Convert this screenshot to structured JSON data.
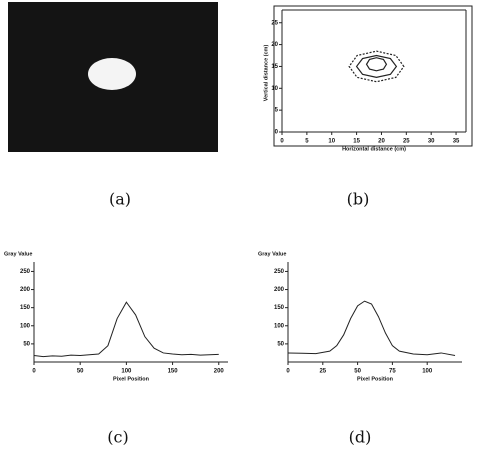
{
  "chart_data": [
    {
      "type": "image",
      "caption": "(a)"
    },
    {
      "type": "contour",
      "caption": "(b)",
      "xlabel": "Horizontal distance (cm)",
      "ylabel": "Vertical distance (cm)",
      "xlim": [
        0,
        37
      ],
      "xticks": [
        0,
        5,
        10,
        15,
        20,
        25,
        30,
        35
      ],
      "ylim": [
        0,
        27
      ],
      "yticks": [
        0,
        5,
        10,
        15,
        20,
        25
      ],
      "contours": [
        {
          "x": [
            24.5,
            22.9,
            19,
            15.1,
            13.5,
            15.1,
            19,
            22.9
          ],
          "y": [
            15,
            17.5,
            18.5,
            17.5,
            15,
            12.5,
            11.5,
            12.5
          ]
        },
        {
          "x": [
            23,
            21.8,
            19,
            16.2,
            15,
            16.2,
            19,
            21.8
          ],
          "y": [
            15,
            16.8,
            17.5,
            16.8,
            15,
            13.2,
            12.5,
            13.2
          ]
        },
        {
          "x": [
            21,
            20.4,
            19,
            17.6,
            17,
            17.6,
            19,
            20.4
          ],
          "y": [
            15.5,
            16.6,
            17,
            16.6,
            15.5,
            14.4,
            14,
            14.4
          ]
        }
      ],
      "color": "#222"
    },
    {
      "type": "line",
      "caption": "(c)",
      "ylabel": "Gray Value",
      "xlabel": "Pixel Position",
      "xlim": [
        0,
        210
      ],
      "xticks": [
        0,
        50,
        100,
        150,
        200
      ],
      "ylim": [
        0,
        265
      ],
      "yticks": [
        50,
        100,
        150,
        200,
        250
      ],
      "x": [
        0,
        10,
        20,
        30,
        40,
        50,
        60,
        70,
        80,
        90,
        100,
        110,
        120,
        130,
        140,
        150,
        160,
        170,
        180,
        190,
        200
      ],
      "values": [
        18,
        15,
        17,
        16,
        19,
        18,
        20,
        22,
        45,
        120,
        165,
        130,
        70,
        38,
        25,
        22,
        20,
        21,
        19,
        20,
        21
      ],
      "color": "#222"
    },
    {
      "type": "line",
      "caption": "(d)",
      "ylabel": "Gray Value",
      "xlabel": "Pixel Position",
      "xlim": [
        0,
        125
      ],
      "xticks": [
        0,
        25,
        50,
        75,
        100
      ],
      "ylim": [
        0,
        265
      ],
      "yticks": [
        50,
        100,
        150,
        200,
        250
      ],
      "x": [
        0,
        10,
        20,
        30,
        35,
        40,
        45,
        50,
        55,
        60,
        65,
        70,
        75,
        80,
        90,
        100,
        110,
        120
      ],
      "values": [
        25,
        24,
        23,
        30,
        45,
        75,
        120,
        155,
        168,
        160,
        125,
        80,
        45,
        30,
        22,
        20,
        25,
        18
      ],
      "color": "#222"
    }
  ]
}
